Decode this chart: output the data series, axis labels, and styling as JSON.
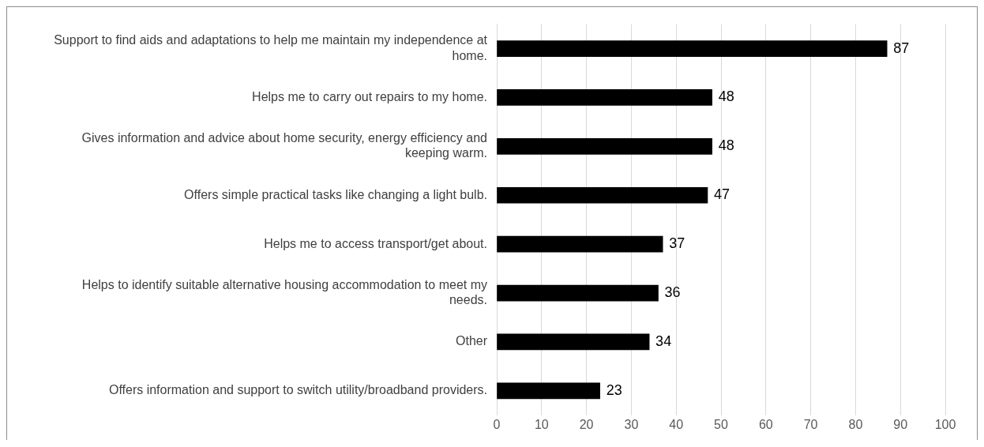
{
  "chart_data": {
    "type": "bar",
    "orientation": "horizontal",
    "categories": [
      "Support to find aids and adaptations to help me maintain my independence at home.",
      "Helps me to carry out repairs to my home.",
      "Gives information and advice about home security, energy efficiency and keeping warm.",
      "Offers simple practical tasks like changing a light bulb.",
      "Helps me to access transport/get about.",
      "Helps to identify suitable alternative housing accommodation to meet my needs.",
      "Other",
      "Offers information and support to switch utility/broadband providers."
    ],
    "values": [
      87,
      48,
      48,
      47,
      37,
      36,
      34,
      23
    ],
    "color": "#000000",
    "xlim": [
      0,
      100
    ],
    "xticks": [
      0,
      10,
      20,
      30,
      40,
      50,
      60,
      70,
      80,
      90,
      100
    ],
    "grid": "x",
    "data_labels": true,
    "legend": false
  }
}
